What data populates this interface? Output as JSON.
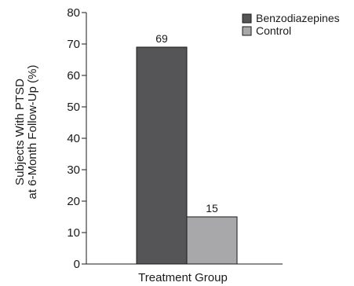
{
  "chart_data": {
    "type": "bar",
    "categories": [
      "Treatment Group"
    ],
    "series": [
      {
        "name": "Benzodiazepines",
        "values": [
          69
        ],
        "color": "#555557"
      },
      {
        "name": "Control",
        "values": [
          15
        ],
        "color": "#a8a8aa"
      }
    ],
    "xlabel": "Treatment Group",
    "ylabel": [
      "Subjects With PTSD",
      "at 6-Month Follow-Up (%)"
    ],
    "ylim": [
      0,
      80
    ],
    "yticks": [
      0,
      10,
      20,
      30,
      40,
      50,
      60,
      70,
      80
    ],
    "data_labels": [
      "69",
      "15"
    ],
    "legend_position": "top-right",
    "grid": false
  }
}
